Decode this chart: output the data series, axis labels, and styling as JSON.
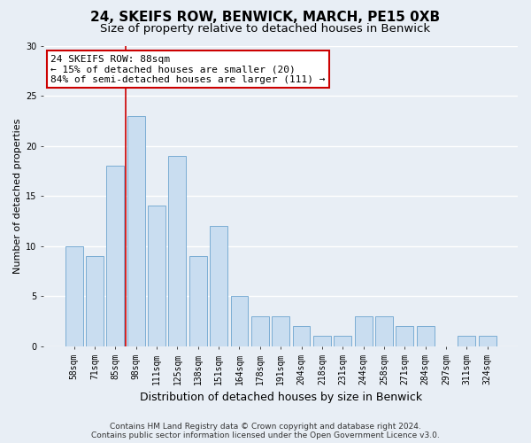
{
  "title": "24, SKEIFS ROW, BENWICK, MARCH, PE15 0XB",
  "subtitle": "Size of property relative to detached houses in Benwick",
  "xlabel": "Distribution of detached houses by size in Benwick",
  "ylabel": "Number of detached properties",
  "categories": [
    "58sqm",
    "71sqm",
    "85sqm",
    "98sqm",
    "111sqm",
    "125sqm",
    "138sqm",
    "151sqm",
    "164sqm",
    "178sqm",
    "191sqm",
    "204sqm",
    "218sqm",
    "231sqm",
    "244sqm",
    "258sqm",
    "271sqm",
    "284sqm",
    "297sqm",
    "311sqm",
    "324sqm"
  ],
  "values": [
    10,
    9,
    18,
    23,
    14,
    19,
    9,
    12,
    5,
    3,
    3,
    2,
    1,
    1,
    3,
    3,
    2,
    2,
    0,
    1,
    1
  ],
  "bar_color": "#c9ddf0",
  "bar_edge_color": "#7badd4",
  "reference_line_color": "#cc0000",
  "annotation_text": "24 SKEIFS ROW: 88sqm\n← 15% of detached houses are smaller (20)\n84% of semi-detached houses are larger (111) →",
  "annotation_box_facecolor": "#ffffff",
  "annotation_box_edgecolor": "#cc0000",
  "ylim": [
    0,
    30
  ],
  "yticks": [
    0,
    5,
    10,
    15,
    20,
    25,
    30
  ],
  "footer_line1": "Contains HM Land Registry data © Crown copyright and database right 2024.",
  "footer_line2": "Contains public sector information licensed under the Open Government Licence v3.0.",
  "background_color": "#e8eef5",
  "grid_color": "#ffffff",
  "title_fontsize": 11,
  "subtitle_fontsize": 9.5,
  "ylabel_fontsize": 8,
  "xlabel_fontsize": 9,
  "tick_fontsize": 7,
  "annotation_fontsize": 8,
  "footer_fontsize": 6.5
}
